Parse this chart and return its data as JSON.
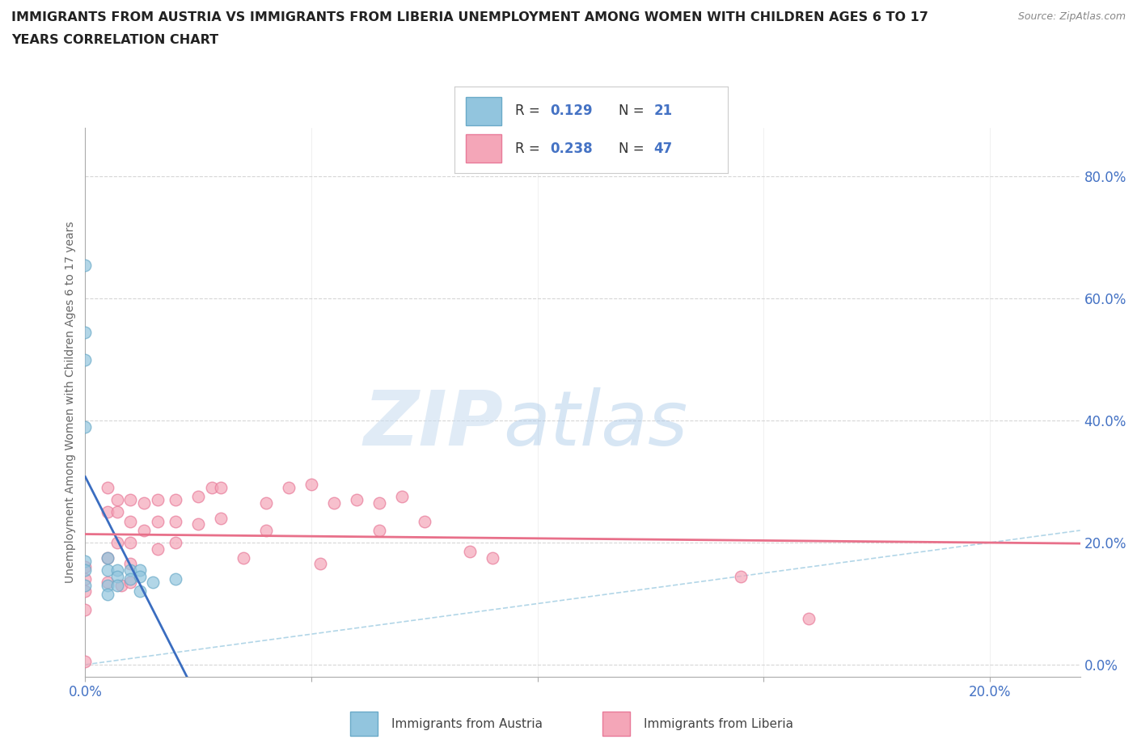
{
  "title_line1": "IMMIGRANTS FROM AUSTRIA VS IMMIGRANTS FROM LIBERIA UNEMPLOYMENT AMONG WOMEN WITH CHILDREN AGES 6 TO 17",
  "title_line2": "YEARS CORRELATION CHART",
  "source": "Source: ZipAtlas.com",
  "ylabel_text": "Unemployment Among Women with Children Ages 6 to 17 years",
  "xlim": [
    0.0,
    0.22
  ],
  "ylim": [
    -0.02,
    0.88
  ],
  "x_ticks": [
    0.0,
    0.2
  ],
  "x_tick_labels": [
    "0.0%",
    "20.0%"
  ],
  "y_tick_positions_right": [
    0.0,
    0.2,
    0.4,
    0.6,
    0.8
  ],
  "y_tick_labels_right": [
    "0.0%",
    "20.0%",
    "40.0%",
    "60.0%",
    "80.0%"
  ],
  "watermark_zip": "ZIP",
  "watermark_atlas": "atlas",
  "legend_R1": "0.129",
  "legend_N1": "21",
  "legend_R2": "0.238",
  "legend_N2": "47",
  "austria_color": "#92C5DE",
  "austria_edge_color": "#6AAAC8",
  "liberia_color": "#F4A6B8",
  "liberia_edge_color": "#E87A99",
  "austria_scatter_x": [
    0.0,
    0.0,
    0.0,
    0.0,
    0.0,
    0.0,
    0.0,
    0.005,
    0.005,
    0.005,
    0.005,
    0.007,
    0.007,
    0.007,
    0.01,
    0.01,
    0.012,
    0.012,
    0.012,
    0.015,
    0.02
  ],
  "austria_scatter_y": [
    0.655,
    0.545,
    0.5,
    0.39,
    0.17,
    0.155,
    0.13,
    0.175,
    0.155,
    0.13,
    0.115,
    0.155,
    0.145,
    0.13,
    0.155,
    0.14,
    0.155,
    0.145,
    0.12,
    0.135,
    0.14
  ],
  "liberia_scatter_x": [
    0.0,
    0.0,
    0.0,
    0.0,
    0.0,
    0.005,
    0.005,
    0.005,
    0.005,
    0.007,
    0.007,
    0.007,
    0.008,
    0.01,
    0.01,
    0.01,
    0.01,
    0.01,
    0.013,
    0.013,
    0.016,
    0.016,
    0.016,
    0.02,
    0.02,
    0.02,
    0.025,
    0.025,
    0.028,
    0.03,
    0.03,
    0.035,
    0.04,
    0.04,
    0.045,
    0.05,
    0.052,
    0.055,
    0.06,
    0.065,
    0.065,
    0.07,
    0.075,
    0.085,
    0.09,
    0.145,
    0.16
  ],
  "liberia_scatter_y": [
    0.16,
    0.14,
    0.12,
    0.09,
    0.005,
    0.29,
    0.25,
    0.175,
    0.135,
    0.27,
    0.25,
    0.2,
    0.13,
    0.27,
    0.235,
    0.2,
    0.165,
    0.135,
    0.265,
    0.22,
    0.27,
    0.235,
    0.19,
    0.27,
    0.235,
    0.2,
    0.275,
    0.23,
    0.29,
    0.29,
    0.24,
    0.175,
    0.265,
    0.22,
    0.29,
    0.295,
    0.165,
    0.265,
    0.27,
    0.265,
    0.22,
    0.275,
    0.235,
    0.185,
    0.175,
    0.145,
    0.075
  ],
  "grid_color": "#cccccc",
  "grid_linestyle": "--",
  "background_color": "#ffffff",
  "diagonal_color": "#92C5DE",
  "diagonal_alpha": 0.7,
  "trend_austria_color": "#3A6DC0",
  "trend_liberia_color": "#E8708A",
  "trend_linewidth": 2.0,
  "scatter_size": 110,
  "scatter_alpha": 0.7,
  "scatter_linewidth": 1.0
}
